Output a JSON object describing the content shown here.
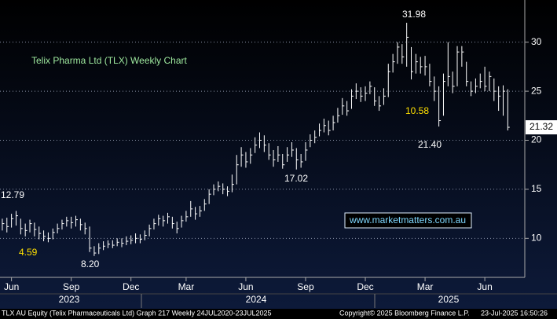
{
  "chart_data": {
    "type": "ohlc",
    "title": "Telix Pharma Ltd (TLX) Weekly Chart",
    "watermark": "www.marketmatters.com.au",
    "annotations": [
      "12.79",
      "4.59",
      "8.20",
      "17.02",
      "31.98",
      "10.58",
      "21.40"
    ],
    "x_years": [
      "2023",
      "2024",
      "2025"
    ],
    "footer": [
      "TLX AU Equity (Telix Pharmaceuticals Ltd) Graph 217  Weekly 24JUL2020-23JUL2025",
      "Copyright© 2025 Bloomberg Finance L.P.",
      "23-Jul-2025 16:50:26"
    ],
    "color": "#ffffff",
    "grid": true,
    "xlim": [
      -0.5,
      113.7
    ],
    "xticks": [
      {
        "value": 2,
        "label": "Jun"
      },
      {
        "value": 15,
        "label": "Sep"
      },
      {
        "value": 28,
        "label": "Dec"
      },
      {
        "value": 40,
        "label": "Mar"
      },
      {
        "value": 53,
        "label": "Jun"
      },
      {
        "value": 66,
        "label": "Sep"
      },
      {
        "value": 79,
        "label": "Dec"
      },
      {
        "value": 92,
        "label": "Mar"
      },
      {
        "value": 105,
        "label": "Jun"
      }
    ],
    "ylim": [
      6.1,
      34.3
    ],
    "yticks": [
      10,
      15,
      20,
      25,
      30
    ],
    "x": [
      0,
      1,
      2,
      3,
      4,
      5,
      6,
      7,
      8,
      9,
      10,
      11,
      12,
      13,
      14,
      15,
      16,
      17,
      18,
      19,
      20,
      21,
      22,
      23,
      24,
      25,
      26,
      27,
      28,
      29,
      30,
      31,
      32,
      33,
      34,
      35,
      36,
      37,
      38,
      39,
      40,
      41,
      42,
      43,
      44,
      45,
      46,
      47,
      48,
      49,
      50,
      51,
      52,
      53,
      54,
      55,
      56,
      57,
      58,
      59,
      60,
      61,
      62,
      63,
      64,
      65,
      66,
      67,
      68,
      69,
      70,
      71,
      72,
      73,
      74,
      75,
      76,
      77,
      78,
      79,
      80,
      81,
      82,
      83,
      84,
      85,
      86,
      87,
      88,
      89,
      90,
      91,
      92,
      93,
      94,
      95,
      96,
      97,
      98,
      99,
      100,
      101,
      102,
      103,
      104,
      105,
      106,
      107,
      108,
      109,
      110
    ],
    "high": [
      12.0,
      12.1,
      12.5,
      12.79,
      12.0,
      11.5,
      11.9,
      11.6,
      11.2,
      10.8,
      10.6,
      11.0,
      11.5,
      11.9,
      12.2,
      12.2,
      12.3,
      12.0,
      11.6,
      11.2,
      9.2,
      9.5,
      9.7,
      9.8,
      9.8,
      10.0,
      10.0,
      10.2,
      10.3,
      10.5,
      10.4,
      10.8,
      11.4,
      12.0,
      12.4,
      12.3,
      12.6,
      12.2,
      11.7,
      12.3,
      12.8,
      13.8,
      13.2,
      13.3,
      14.0,
      15.0,
      15.5,
      15.8,
      15.6,
      15.3,
      16.5,
      18.5,
      19.3,
      18.8,
      19.2,
      20.3,
      20.8,
      20.5,
      19.7,
      19.0,
      19.4,
      18.6,
      19.3,
      19.8,
      19.2,
      18.6,
      19.8,
      20.6,
      21.0,
      21.7,
      22.2,
      22.0,
      22.5,
      23.3,
      24.3,
      24.0,
      25.2,
      25.8,
      25.4,
      25.5,
      26.0,
      25.4,
      24.5,
      25.3,
      27.8,
      28.8,
      30.0,
      29.8,
      31.98,
      29.5,
      28.8,
      28.5,
      28.6,
      27.8,
      26.5,
      25.5,
      26.8,
      30.0,
      27.0,
      29.6,
      29.6,
      28.0,
      26.0,
      26.3,
      26.8,
      27.5,
      27.0,
      26.3,
      25.5,
      25.6,
      25.2
    ],
    "low": [
      10.8,
      10.6,
      11.1,
      11.3,
      10.4,
      10.2,
      10.6,
      10.2,
      9.9,
      9.7,
      9.6,
      9.9,
      10.5,
      10.9,
      11.2,
      11.0,
      11.2,
      10.8,
      10.4,
      8.6,
      8.2,
      8.4,
      8.8,
      9.0,
      9.0,
      9.2,
      9.1,
      9.3,
      9.4,
      9.5,
      9.5,
      9.8,
      10.2,
      10.9,
      11.3,
      11.2,
      11.5,
      11.0,
      10.5,
      11.1,
      11.7,
      12.2,
      11.9,
      12.2,
      12.8,
      13.5,
      14.4,
      14.8,
      14.5,
      14.3,
      14.7,
      15.5,
      17.3,
      17.2,
      17.6,
      18.7,
      19.2,
      18.8,
      18.0,
      17.3,
      17.8,
      17.1,
      17.8,
      18.3,
      17.02,
      17.2,
      17.9,
      19.3,
      19.7,
      20.4,
      20.8,
      20.5,
      21.0,
      21.8,
      22.6,
      22.5,
      23.2,
      24.2,
      23.9,
      24.0,
      24.7,
      23.5,
      23.0,
      23.6,
      24.4,
      26.9,
      27.8,
      27.8,
      27.5,
      26.2,
      26.8,
      26.8,
      26.6,
      25.5,
      24.0,
      21.4,
      22.5,
      25.5,
      24.8,
      25.5,
      27.5,
      25.5,
      24.5,
      24.8,
      25.3,
      25.0,
      25.0,
      24.0,
      23.0,
      22.5,
      21.0
    ],
    "close": [
      11.5,
      11.2,
      12.0,
      12.3,
      11.0,
      10.8,
      11.5,
      10.9,
      10.5,
      10.2,
      10.0,
      10.6,
      11.0,
      11.5,
      11.8,
      11.6,
      11.9,
      11.4,
      11.0,
      9.0,
      8.5,
      9.0,
      9.2,
      9.4,
      9.3,
      9.6,
      9.5,
      9.7,
      9.8,
      10.0,
      9.9,
      10.3,
      11.0,
      11.5,
      12.0,
      11.8,
      12.2,
      11.5,
      11.0,
      11.8,
      12.2,
      13.0,
      12.5,
      12.8,
      13.5,
      14.5,
      15.0,
      15.3,
      15.0,
      14.8,
      15.5,
      17.5,
      18.5,
      17.8,
      18.5,
      19.5,
      20.0,
      19.5,
      18.5,
      18.0,
      18.5,
      17.5,
      18.5,
      19.0,
      18.0,
      17.8,
      19.0,
      20.0,
      20.3,
      21.0,
      21.5,
      21.0,
      21.8,
      22.5,
      23.5,
      23.0,
      24.5,
      25.0,
      24.5,
      24.8,
      25.5,
      24.0,
      23.5,
      24.5,
      27.0,
      28.0,
      29.5,
      28.5,
      30.5,
      27.0,
      28.0,
      27.5,
      27.5,
      26.0,
      25.0,
      22.0,
      26.0,
      26.5,
      25.5,
      29.0,
      29.0,
      26.0,
      25.0,
      25.5,
      26.0,
      25.5,
      26.5,
      25.0,
      24.5,
      25.0,
      21.32
    ]
  }
}
